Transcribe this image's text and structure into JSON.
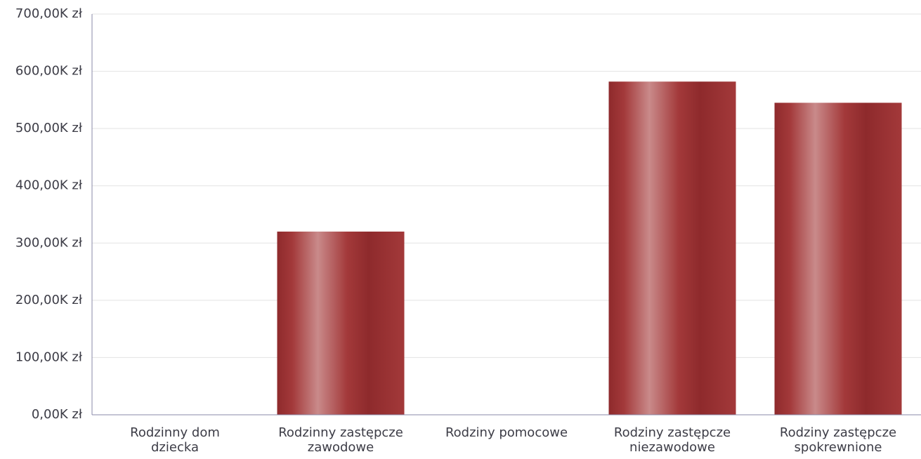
{
  "chart_data": {
    "type": "bar",
    "categories": [
      [
        "Rodzinny dom",
        "dziecka"
      ],
      [
        "Rodzinny zastępcze",
        "zawodowe"
      ],
      [
        "Rodziny pomocowe"
      ],
      [
        "Rodziny zastępcze",
        "niezawodowe"
      ],
      [
        "Rodziny zastępcze",
        "spokrewnione"
      ]
    ],
    "values": [
      0,
      320,
      0,
      582,
      545
    ],
    "value_unit": "K zł",
    "ylim": [
      0,
      700
    ],
    "yticks": [
      "0,00K zł",
      "100,00K zł",
      "200,00K zł",
      "300,00K zł",
      "400,00K zł",
      "500,00K zł",
      "600,00K zł",
      "700,00K zł"
    ],
    "grid": true,
    "title": "",
    "xlabel": "",
    "ylabel": "",
    "colors": {
      "bar_dark": "#8e2a2c",
      "bar_mid": "#a3393a",
      "bar_light": "#c98a8a",
      "grid": "#e3e3e3",
      "axis": "#8a8aa8",
      "text": "#3c3c46"
    }
  }
}
